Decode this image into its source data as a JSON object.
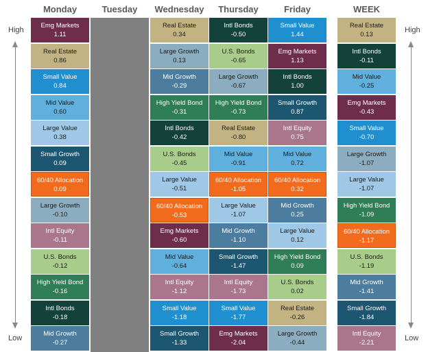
{
  "headers": {
    "monday": "Monday",
    "tuesday": "Tuesday",
    "wednesday": "Wednesday",
    "thursday": "Thursday",
    "friday": "Friday",
    "week": "WEEK"
  },
  "axis": {
    "high": "High",
    "low": "Low"
  },
  "colors": {
    "Emg Markets": "#6e2d4a",
    "Real Estate": "#c4b382",
    "Small Value": "#1f8fcf",
    "Mid Value": "#5fb0dc",
    "Large Value": "#9fc7e6",
    "Small Growth": "#1d5670",
    "60/40 Allocation": "#f26b1d",
    "Large Growth": "#8cacbf",
    "Intl Equity": "#a9768c",
    "U.S. Bonds": "#a8cd8a",
    "High Yield Bond": "#2f7e57",
    "Intl Bonds": "#124239",
    "Mid Growth": "#4d7d9e",
    "tuesday_fill": "#808080"
  },
  "chart_data": {
    "type": "table",
    "title": "",
    "columns": [
      {
        "key": "monday",
        "cells": [
          {
            "name": "Emg Markets",
            "value": "1.11"
          },
          {
            "name": "Real Estate",
            "value": "0.86"
          },
          {
            "name": "Small Value",
            "value": "0.84"
          },
          {
            "name": "Mid Value",
            "value": "0.60"
          },
          {
            "name": "Large Value",
            "value": "0.38"
          },
          {
            "name": "Small Growth",
            "value": "0.09"
          },
          {
            "name": "60/40 Allocation",
            "value": "0.09"
          },
          {
            "name": "Large Growth",
            "value": "-0.10"
          },
          {
            "name": "Intl Equity",
            "value": "-0.11"
          },
          {
            "name": "U.S. Bonds",
            "value": "-0.12"
          },
          {
            "name": "High Yield Bond",
            "value": "-0.16"
          },
          {
            "name": "Intl Bonds",
            "value": "-0.18"
          },
          {
            "name": "Mid Growth",
            "value": "-0.27"
          }
        ]
      },
      {
        "key": "tuesday",
        "cells": []
      },
      {
        "key": "wednesday",
        "cells": [
          {
            "name": "Real Estate",
            "value": "0.34"
          },
          {
            "name": "Large Growth",
            "value": "0.13"
          },
          {
            "name": "Mid Growth",
            "value": "-0.29"
          },
          {
            "name": "High Yield Bond",
            "value": "-0.31"
          },
          {
            "name": "Intl Bonds",
            "value": "-0.42"
          },
          {
            "name": "U.S. Bonds",
            "value": "-0.45"
          },
          {
            "name": "Large Value",
            "value": "-0.51"
          },
          {
            "name": "60/40 Allocation",
            "value": "-0.53"
          },
          {
            "name": "Emg Markets",
            "value": "-0.60"
          },
          {
            "name": "Mid Value",
            "value": "-0.64"
          },
          {
            "name": "Intl Equity",
            "value": "-1.12"
          },
          {
            "name": "Small Value",
            "value": "-1.18"
          },
          {
            "name": "Small Growth",
            "value": "-1.33"
          }
        ]
      },
      {
        "key": "thursday",
        "cells": [
          {
            "name": "Intl Bonds",
            "value": "-0.50"
          },
          {
            "name": "U.S. Bonds",
            "value": "-0.65"
          },
          {
            "name": "Large Growth",
            "value": "-0.67"
          },
          {
            "name": "High Yield Bond",
            "value": "-0.73"
          },
          {
            "name": "Real Estate",
            "value": "-0.80"
          },
          {
            "name": "Mid Value",
            "value": "-0.91"
          },
          {
            "name": "60/40 Allocation",
            "value": "-1.05"
          },
          {
            "name": "Large Value",
            "value": "-1.07"
          },
          {
            "name": "Mid Growth",
            "value": "-1.10"
          },
          {
            "name": "Small Growth",
            "value": "-1.47"
          },
          {
            "name": "Intl Equity",
            "value": "-1.73"
          },
          {
            "name": "Small Value",
            "value": "-1.77"
          },
          {
            "name": "Emg Markets",
            "value": "-2.04"
          }
        ]
      },
      {
        "key": "friday",
        "cells": [
          {
            "name": "Small Value",
            "value": "1.44"
          },
          {
            "name": "Emg Markets",
            "value": "1.13"
          },
          {
            "name": "Intl Bonds",
            "value": "1.00"
          },
          {
            "name": "Small Growth",
            "value": "0.87"
          },
          {
            "name": "Intl Equity",
            "value": "0.75"
          },
          {
            "name": "Mid Value",
            "value": "0.72"
          },
          {
            "name": "60/40 Allocation",
            "value": "0.32"
          },
          {
            "name": "Mid Growth",
            "value": "0.25"
          },
          {
            "name": "Large Value",
            "value": "0.12"
          },
          {
            "name": "High Yield Bond",
            "value": "0.09"
          },
          {
            "name": "U.S. Bonds",
            "value": "0.02"
          },
          {
            "name": "Real Estate",
            "value": "-0.26"
          },
          {
            "name": "Large Growth",
            "value": "-0.44"
          }
        ]
      },
      {
        "key": "week",
        "cells": [
          {
            "name": "Real Estate",
            "value": "0.13"
          },
          {
            "name": "Intl Bonds",
            "value": "-0.11"
          },
          {
            "name": "Mid Value",
            "value": "-0.25"
          },
          {
            "name": "Emg Markets",
            "value": "-0.43"
          },
          {
            "name": "Small Value",
            "value": "-0.70"
          },
          {
            "name": "Large Growth",
            "value": "-1.07"
          },
          {
            "name": "Large Value",
            "value": "-1.07"
          },
          {
            "name": "High Yield Bond",
            "value": "-1.09"
          },
          {
            "name": "60/40 Allocation",
            "value": "-1.17"
          },
          {
            "name": "U.S. Bonds",
            "value": "-1.19"
          },
          {
            "name": "Mid Growth",
            "value": "-1.41"
          },
          {
            "name": "Small Growth",
            "value": "-1.84"
          },
          {
            "name": "Intl Equity",
            "value": "-2.21"
          }
        ]
      }
    ]
  }
}
